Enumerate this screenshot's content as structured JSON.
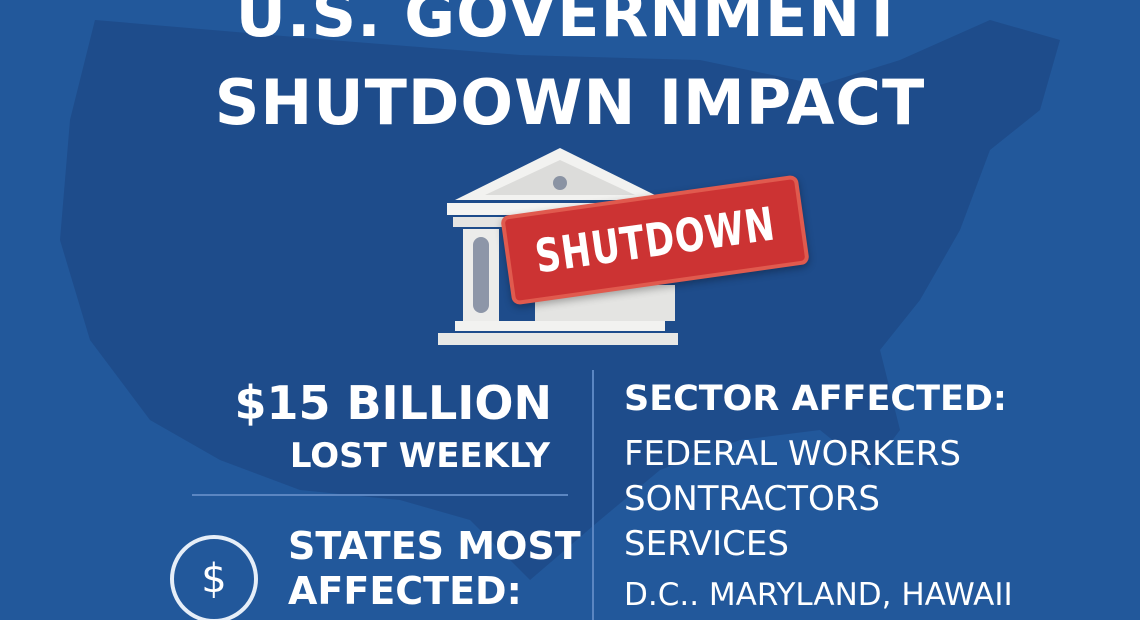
{
  "title": {
    "line1": "U.S. GOVERNMENT",
    "line2": "SHUTDOWN IMPACT"
  },
  "stamp": {
    "label": "SHUTDOWN"
  },
  "stats": {
    "amount": "$15 BILLION",
    "amount_caption": "LOST WEEKLY"
  },
  "states": {
    "heading_line1": "STATES MOST",
    "heading_line2": "AFFECTED:",
    "value": "D.C.. MARYLAND, HAWAII",
    "icon": "dollar-coin-icon"
  },
  "sectors": {
    "heading": "SECTOR AFFECTED:",
    "items": [
      "FEDERAL WORKERS",
      "SONTRACTORS",
      "SERVICES"
    ]
  },
  "colors": {
    "background": "#22589b",
    "map": "#1d4a88",
    "stamp": "#cc3333"
  }
}
